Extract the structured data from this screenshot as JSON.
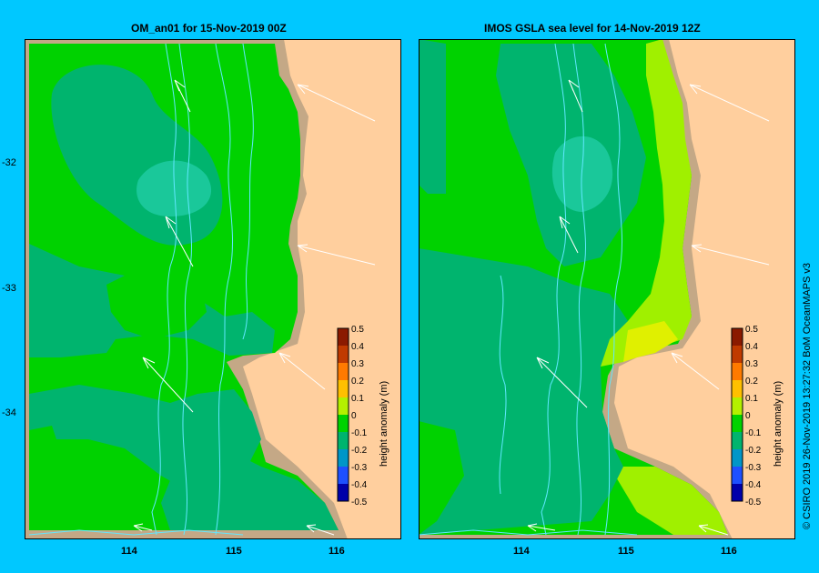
{
  "panels": [
    {
      "title": "OM_an01  for 15-Nov-2019 00Z",
      "colorbar": {
        "label": "height anomaly (m)",
        "ticks": [
          "0.5",
          "0.4",
          "0.3",
          "0.2",
          "0.1",
          "0",
          "-0.1",
          "-0.2",
          "-0.3",
          "-0.4",
          "-0.5"
        ]
      }
    },
    {
      "title": "IMOS  GSLA sea level   for 14-Nov-2019 12Z",
      "colorbar": {
        "label": "height anomaly (m)",
        "ticks": [
          "0.5",
          "0.4",
          "0.3",
          "0.2",
          "0.1",
          "0",
          "-0.1",
          "-0.2",
          "-0.3",
          "-0.4",
          "-0.5"
        ]
      }
    }
  ],
  "lat_labels": [
    "-32",
    "-33",
    "-34"
  ],
  "lon_labels": [
    "114",
    "115",
    "116"
  ],
  "credit": "© CSIRO 2019   26-Nov-2019 13:27:32 BoM OceanMAPS v3",
  "colors": {
    "background": "#00c8ff",
    "land": "#ffcf9e",
    "shelf": "#c4a886",
    "anomaly_zero": "#00d200",
    "anomaly_neg": "#00b46e",
    "anomaly_pos": "#a0f000"
  }
}
